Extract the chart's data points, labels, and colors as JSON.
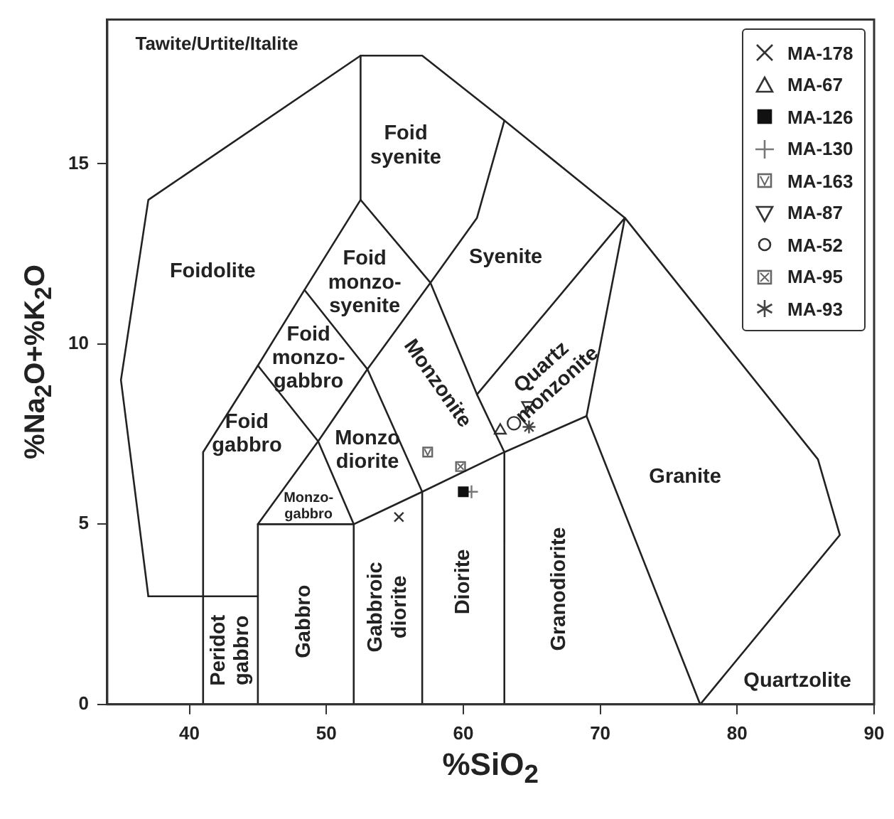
{
  "chart_data": {
    "type": "scatter",
    "xlabel": "%SiO$_{2}$",
    "ylabel": "%Na$_{2}$O+%K$_{2}$O",
    "xlim": [
      34,
      90
    ],
    "ylim": [
      0,
      19
    ],
    "xticks": [
      40,
      50,
      60,
      70,
      80,
      90
    ],
    "yticks": [
      0,
      5,
      10,
      15
    ],
    "grid": false,
    "legend": "top right",
    "series": [
      {
        "type": "line",
        "color": "#222222",
        "marker": "none",
        "x": [
          37,
          35,
          37,
          52.5,
          57,
          63,
          71.8,
          85.9,
          87.5,
          77.3
        ],
        "values": [
          3,
          9,
          14,
          18,
          18,
          16.2,
          13.5,
          6.8,
          4.7,
          0
        ]
      },
      {
        "type": "line",
        "color": "#222222",
        "marker": "none",
        "x": [
          37,
          45
        ],
        "values": [
          3,
          3
        ]
      },
      {
        "type": "line",
        "color": "#222222",
        "marker": "none",
        "x": [
          41,
          41,
          45,
          48.4,
          52.5,
          52.5
        ],
        "values": [
          0,
          7,
          9.4,
          11.5,
          14,
          18
        ]
      },
      {
        "type": "line",
        "color": "#222222",
        "marker": "none",
        "x": [
          45,
          45,
          52,
          52
        ],
        "values": [
          0,
          5,
          5,
          0
        ]
      },
      {
        "type": "line",
        "color": "#222222",
        "marker": "none",
        "x": [
          45,
          49.4,
          53,
          57.6,
          61,
          63
        ],
        "values": [
          5,
          7.3,
          9.3,
          11.7,
          13.5,
          16.2
        ]
      },
      {
        "type": "line",
        "color": "#222222",
        "marker": "none",
        "x": [
          45,
          49.4,
          52
        ],
        "values": [
          9.4,
          7.3,
          5
        ]
      },
      {
        "type": "line",
        "color": "#222222",
        "marker": "none",
        "x": [
          52,
          57,
          63,
          69,
          77.3
        ],
        "values": [
          5,
          5.9,
          7,
          8,
          0
        ]
      },
      {
        "type": "line",
        "color": "#222222",
        "marker": "none",
        "x": [
          57,
          57,
          53,
          48.4
        ],
        "values": [
          0,
          5.9,
          9.3,
          11.5
        ]
      },
      {
        "type": "line",
        "color": "#222222",
        "marker": "none",
        "x": [
          52.5,
          57.6,
          61,
          63,
          63
        ],
        "values": [
          14,
          11.7,
          8.6,
          7,
          0
        ]
      },
      {
        "type": "line",
        "color": "#222222",
        "marker": "none",
        "x": [
          61,
          71.8,
          69
        ],
        "values": [
          8.6,
          13.5,
          8
        ]
      },
      {
        "type": "scatter",
        "name": "MA-178",
        "marker": "x",
        "color": "#333333",
        "x": [
          55.3
        ],
        "values": [
          5.2
        ]
      },
      {
        "type": "scatter",
        "name": "MA-67",
        "marker": "triangle",
        "color": "#333333",
        "x": [
          62.7
        ],
        "values": [
          7.6
        ]
      },
      {
        "type": "scatter",
        "name": "MA-126",
        "marker": "square-filled",
        "color": "#111111",
        "x": [
          60
        ],
        "values": [
          5.9
        ]
      },
      {
        "type": "scatter",
        "name": "MA-130",
        "marker": "plus",
        "color": "#777777",
        "x": [
          60.6
        ],
        "values": [
          5.9
        ]
      },
      {
        "type": "scatter",
        "name": "MA-163",
        "marker": "square-check",
        "color": "#666666",
        "x": [
          57.4
        ],
        "values": [
          7
        ]
      },
      {
        "type": "scatter",
        "name": "MA-87",
        "marker": "triangle-down",
        "color": "#333333",
        "x": [
          64.7
        ],
        "values": [
          8.3
        ]
      },
      {
        "type": "scatter",
        "name": "MA-52",
        "marker": "circle",
        "color": "#333333",
        "x": [
          63.7
        ],
        "values": [
          7.8
        ]
      },
      {
        "type": "scatter",
        "name": "MA-95",
        "marker": "square-x",
        "color": "#666666",
        "x": [
          59.8
        ],
        "values": [
          6.6
        ]
      },
      {
        "type": "scatter",
        "name": "MA-93",
        "marker": "cross",
        "color": "#444444",
        "x": [
          64.8
        ],
        "values": [
          7.7
        ]
      }
    ],
    "annotations": [
      "Tawite/Urtite/Italite",
      "Foid\nsyenite",
      "Foidolite",
      "Foid\nmonzo-\nsyenite",
      "Syenite",
      "Foid\nmonzo-\ngabbro",
      "Monzonite",
      "Quartz\nmonzonite",
      "Foid\ngabbro",
      "Monzo\ndiorite",
      "Monzo-\ngabbro",
      "Peridot\ngabbro",
      "Gabbro",
      "Gabbroic\ndiorite",
      "Diorite",
      "Granodiorite",
      "Granite",
      "Quartzolite"
    ]
  }
}
